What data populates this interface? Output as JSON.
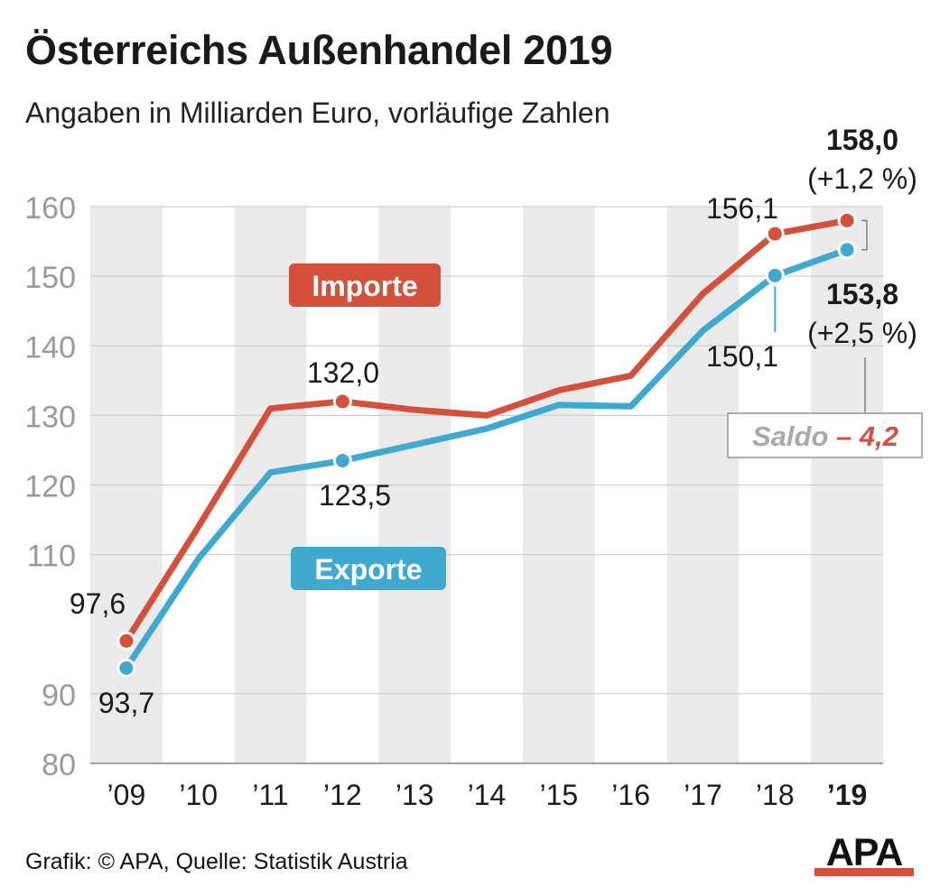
{
  "title": "Österreichs Außenhandel 2019",
  "subtitle": "Angaben in Milliarden Euro, vorläufige Zahlen",
  "source": "Grafik: © APA, Quelle: Statistik Austria",
  "logo_text": "APA",
  "colors": {
    "imports": "#d4503a",
    "exports": "#3fa9d0",
    "band": "#ebebeb",
    "grid": "#cfcfcf",
    "tick": "#999999"
  },
  "chart_data": {
    "type": "line",
    "title": "Österreichs Außenhandel 2019",
    "subtitle": "Angaben in Milliarden Euro, vorläufige Zahlen",
    "categories": [
      "’09",
      "’10",
      "’11",
      "’12",
      "’13",
      "’14",
      "’15",
      "’16",
      "’17",
      "’18",
      "’19"
    ],
    "y_ticks": [
      80,
      90,
      110,
      120,
      130,
      140,
      150,
      160
    ],
    "ylim": [
      80,
      160
    ],
    "grid": true,
    "series": [
      {
        "name": "Importe",
        "values": [
          97.6,
          114.0,
          131.0,
          132.0,
          130.8,
          130.0,
          133.6,
          135.7,
          147.5,
          156.1,
          158.0
        ]
      },
      {
        "name": "Exporte",
        "values": [
          93.7,
          109.4,
          121.8,
          123.5,
          125.8,
          128.1,
          131.5,
          131.3,
          142.2,
          150.1,
          153.8
        ]
      }
    ],
    "value_labels": {
      "imp_2009": "97,6",
      "exp_2009": "93,7",
      "imp_2012": "132,0",
      "exp_2012": "123,5",
      "imp_2018": "156,1",
      "exp_2018": "150,1",
      "imp_2019": "158,0",
      "imp_2019_change": "(+1,2 %)",
      "exp_2019": "153,8",
      "exp_2019_change": "(+2,5 %)"
    },
    "saldo": {
      "label": "Saldo",
      "value": "– 4,2"
    }
  }
}
